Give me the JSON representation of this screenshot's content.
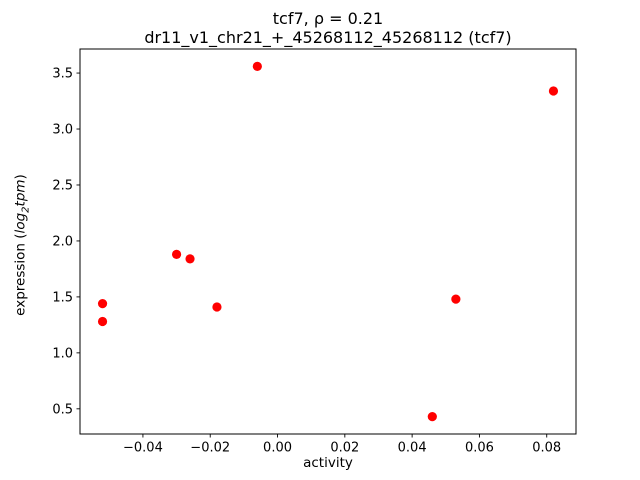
{
  "chart_data": {
    "type": "scatter",
    "title_line1": "tcf7, ρ = 0.21",
    "title_line2": "dr11_v1_chr21_+_45268112_45268112 (tcf7)",
    "xlabel": "activity",
    "ylabel": {
      "pre": "expression (",
      "math_word": "log",
      "sub": "2",
      "math_word2": "tpm",
      "post": ")"
    },
    "marker_color": "#ff0000",
    "xlim": [
      -0.0587,
      0.0887
    ],
    "ylim": [
      0.275,
      3.715
    ],
    "xticks": {
      "values": [
        -0.04,
        -0.02,
        0.0,
        0.02,
        0.04,
        0.06,
        0.08
      ],
      "labels": [
        "−0.04",
        "−0.02",
        "0.00",
        "0.02",
        "0.04",
        "0.06",
        "0.08"
      ]
    },
    "yticks": {
      "values": [
        0.5,
        1.0,
        1.5,
        2.0,
        2.5,
        3.0,
        3.5
      ],
      "labels": [
        "0.5",
        "1.0",
        "1.5",
        "2.0",
        "2.5",
        "3.0",
        "3.5"
      ]
    },
    "points": [
      {
        "x": -0.052,
        "y": 1.44
      },
      {
        "x": -0.052,
        "y": 1.28
      },
      {
        "x": -0.03,
        "y": 1.88
      },
      {
        "x": -0.026,
        "y": 1.84
      },
      {
        "x": -0.018,
        "y": 1.41
      },
      {
        "x": -0.006,
        "y": 3.56
      },
      {
        "x": 0.046,
        "y": 0.43
      },
      {
        "x": 0.053,
        "y": 1.48
      },
      {
        "x": 0.082,
        "y": 3.34
      }
    ]
  }
}
